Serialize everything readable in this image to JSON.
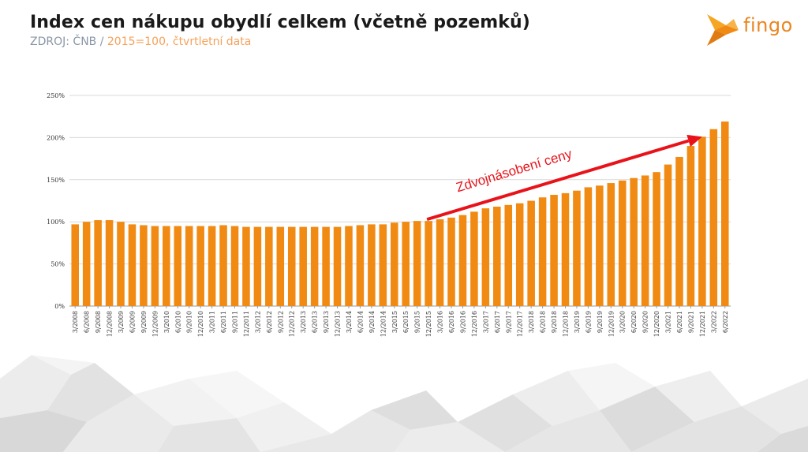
{
  "header": {
    "title": "Index cen nákupu obydlí celkem (včetně pozemků)",
    "source_prefix": "ZDROJ: ČNB / ",
    "source_note": "2015=100, čtvrtletní data"
  },
  "logo": {
    "text": "fingo",
    "icon": "fingo-fish-logo"
  },
  "colors": {
    "bar": "#f08a12",
    "arrow": "#e8131a",
    "grid": "#d9d9d9",
    "title": "#1a1a1a"
  },
  "annotation": {
    "text": "Zdvojnásobení ceny",
    "from": "12/2015",
    "to": "12/2021"
  },
  "chart_data": {
    "type": "bar",
    "categories": [
      "3/2008",
      "6/2008",
      "9/2008",
      "12/2008",
      "3/2009",
      "6/2009",
      "9/2009",
      "12/2009",
      "3/2010",
      "6/2010",
      "9/2010",
      "12/2010",
      "3/2011",
      "6/2011",
      "9/2011",
      "12/2011",
      "3/2012",
      "6/2012",
      "9/2012",
      "12/2012",
      "3/2013",
      "6/2013",
      "9/2013",
      "12/2013",
      "3/2014",
      "6/2014",
      "9/2014",
      "12/2014",
      "3/2015",
      "6/2015",
      "9/2015",
      "12/2015",
      "3/2016",
      "6/2016",
      "9/2016",
      "12/2016",
      "3/2017",
      "6/2017",
      "9/2017",
      "12/2017",
      "3/2018",
      "6/2018",
      "9/2018",
      "12/2018",
      "3/2019",
      "6/2019",
      "9/2019",
      "12/2019",
      "3/2020",
      "6/2020",
      "9/2020",
      "12/2020",
      "3/2021",
      "6/2021",
      "9/2021",
      "12/2021",
      "3/2022",
      "6/2022"
    ],
    "values": [
      97,
      100,
      102,
      102,
      100,
      97,
      96,
      95,
      95,
      95,
      95,
      95,
      95,
      96,
      95,
      94,
      94,
      94,
      94,
      94,
      94,
      94,
      94,
      94,
      95,
      96,
      97,
      97,
      99,
      100,
      101,
      101,
      103,
      105,
      108,
      112,
      116,
      118,
      120,
      122,
      125,
      129,
      132,
      134,
      137,
      141,
      143,
      146,
      149,
      152,
      155,
      159,
      168,
      177,
      190,
      201,
      210,
      219
    ],
    "yticks": [
      "0%",
      "50%",
      "100%",
      "150%",
      "200%",
      "250%"
    ],
    "ylim": [
      0,
      250
    ],
    "grid": true,
    "legend": "none",
    "xlabel": "",
    "ylabel": ""
  }
}
